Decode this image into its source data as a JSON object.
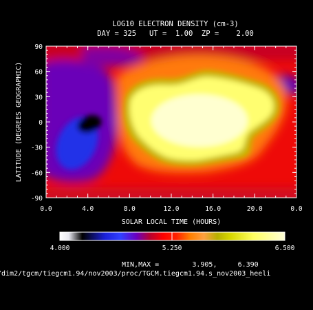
{
  "chart_data": {
    "type": "heatmap",
    "title": "LOG10 ELECTRON DENSITY (cm-3)",
    "subtitle": "DAY = 325   UT =  1.00  ZP =    2.00",
    "xlabel": "SOLAR LOCAL TIME (HOURS)",
    "ylabel": "LATITUDE (DEGREES GEOGRAPHIC)",
    "x_ticks": [
      "0.0",
      "4.0",
      "8.0",
      "12.0",
      "16.0",
      "20.0",
      "0.0"
    ],
    "y_ticks": [
      "90",
      "60",
      "30",
      "0",
      "-30",
      "-60",
      "-90"
    ],
    "xlim": [
      0,
      24
    ],
    "ylim": [
      -90,
      90
    ],
    "colorbar": {
      "min_label": "4.000",
      "mid_label": "5.250",
      "max_label": "6.500",
      "range": [
        4.0,
        6.5
      ]
    },
    "minmax_text": "MIN,MAX =        3.905,     6.390",
    "path_text": "/dim2/tgcm/tiegcm1.94/nov2003/proc/TGCM.tiegcm1.94.s_nov2003_heeli",
    "field_features": [
      {
        "kind": "maximum",
        "lt_center": 14.5,
        "lat_center": 5,
        "value": 6.39
      },
      {
        "kind": "minimum",
        "lt_center": 3.0,
        "lat_center": -10,
        "value": 3.905
      },
      {
        "kind": "background",
        "value": 5.3
      }
    ]
  }
}
